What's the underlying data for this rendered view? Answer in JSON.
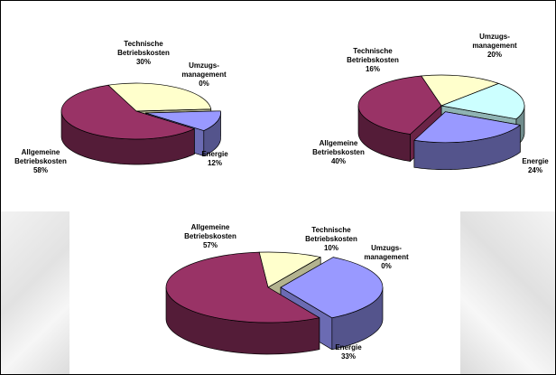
{
  "chart_data": [
    {
      "type": "pie",
      "style": "3d-exploded",
      "slices": [
        {
          "label": "Technische Betriebskosten",
          "value": 30,
          "color": "#ffffcc"
        },
        {
          "label": "Umzugs-management",
          "value": 0,
          "color": "#ccffff"
        },
        {
          "label": "Energie",
          "value": 12,
          "color": "#9999ff"
        },
        {
          "label": "Allgemeine Betriebskosten",
          "value": 58,
          "color": "#993366"
        }
      ],
      "label_lines": [
        [
          "Technische",
          "Betriebskosten",
          "30%"
        ],
        [
          "Umzugs-",
          "management",
          "0%"
        ],
        [
          "Energie",
          "12%"
        ],
        [
          "Allgemeine",
          "Betriebskosten",
          "58%"
        ]
      ]
    },
    {
      "type": "pie",
      "style": "3d-exploded",
      "slices": [
        {
          "label": "Technische Betriebskosten",
          "value": 16,
          "color": "#ffffcc"
        },
        {
          "label": "Umzugs-management",
          "value": 20,
          "color": "#ccffff"
        },
        {
          "label": "Energie",
          "value": 24,
          "color": "#9999ff"
        },
        {
          "label": "Allgemeine Betriebskosten",
          "value": 40,
          "color": "#993366"
        }
      ],
      "label_lines": [
        [
          "Technische",
          "Betriebskosten",
          "16%"
        ],
        [
          "Umzugs-",
          "management",
          "20%"
        ],
        [
          "Energie",
          "24%"
        ],
        [
          "Allgemeine",
          "Betriebskosten",
          "40%"
        ]
      ]
    },
    {
      "type": "pie",
      "style": "3d-exploded",
      "slices": [
        {
          "label": "Technische Betriebskosten",
          "value": 10,
          "color": "#ffffcc"
        },
        {
          "label": "Umzugs-management",
          "value": 0,
          "color": "#ccffff"
        },
        {
          "label": "Energie",
          "value": 33,
          "color": "#9999ff"
        },
        {
          "label": "Allgemeine Betriebskosten",
          "value": 57,
          "color": "#993366"
        }
      ],
      "label_lines": [
        [
          "Technische",
          "Betriebskosten",
          "10%"
        ],
        [
          "Umzugs-",
          "management",
          "0%"
        ],
        [
          "Energie",
          "33%"
        ],
        [
          "Allgemeine",
          "Betriebskosten",
          "57%"
        ]
      ]
    }
  ]
}
